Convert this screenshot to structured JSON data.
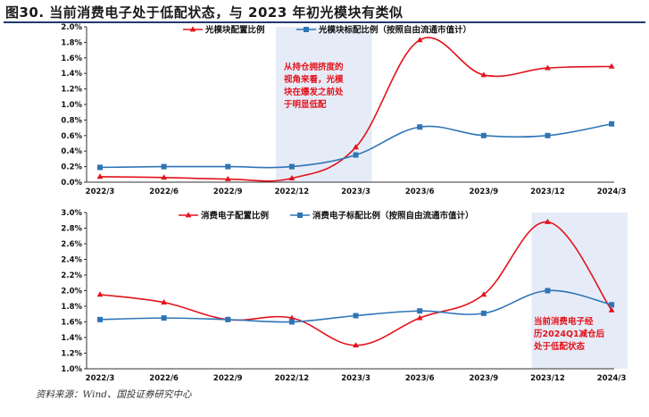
{
  "figure": {
    "title": "图30. 当前消费电子处于低配状态，与 2023 年初光模块有类似",
    "source": "资料来源：Wind、国投证券研究中心"
  },
  "chart_data": [
    {
      "type": "line",
      "categories": [
        "2022/3",
        "2022/6",
        "2022/9",
        "2022/12",
        "2023/3",
        "2023/6",
        "2023/9",
        "2023/12",
        "2024/3"
      ],
      "series": [
        {
          "name": "光模块配置比例",
          "color": "#e3121b",
          "marker": "triangle",
          "values": [
            0.07,
            0.06,
            0.04,
            0.05,
            0.45,
            1.83,
            1.38,
            1.47,
            1.49
          ]
        },
        {
          "name": "光模块标配比例（按照自由流通市值计）",
          "color": "#2e75b6",
          "marker": "square",
          "values": [
            0.19,
            0.2,
            0.2,
            0.2,
            0.35,
            0.71,
            0.6,
            0.6,
            0.75
          ]
        }
      ],
      "ylim": [
        0.0,
        2.0
      ],
      "ytick_step": 0.2,
      "ytick_labels": [
        "0.0%",
        "0.2%",
        "0.4%",
        "0.6%",
        "0.8%",
        "1.0%",
        "1.2%",
        "1.4%",
        "1.6%",
        "1.8%",
        "2.0%"
      ],
      "highlight": {
        "from": "2022/12",
        "to": "2023/3",
        "color": "#e6ecf7"
      },
      "annotation": [
        "从持仓拥挤度的",
        "视角来看，光模",
        "块在爆发之前处",
        "于明显低配"
      ],
      "legend_position": "top-center",
      "grid": false
    },
    {
      "type": "line",
      "categories": [
        "2022/3",
        "2022/6",
        "2022/9",
        "2022/12",
        "2023/3",
        "2023/6",
        "2023/9",
        "2023/12",
        "2024/3"
      ],
      "series": [
        {
          "name": "消费电子配置比例",
          "color": "#e3121b",
          "marker": "triangle",
          "values": [
            1.95,
            1.85,
            1.63,
            1.65,
            1.3,
            1.65,
            1.95,
            2.88,
            1.75
          ]
        },
        {
          "name": "消费电子标配比例（按照自由流通市值计）",
          "color": "#2e75b6",
          "marker": "square",
          "values": [
            1.63,
            1.65,
            1.63,
            1.6,
            1.68,
            1.74,
            1.71,
            2.0,
            1.82
          ]
        }
      ],
      "ylim": [
        1.0,
        3.0
      ],
      "ytick_step": 0.2,
      "ytick_labels": [
        "1.0%",
        "1.2%",
        "1.4%",
        "1.6%",
        "1.8%",
        "2.0%",
        "2.2%",
        "2.4%",
        "2.6%",
        "2.8%",
        "3.0%"
      ],
      "highlight": {
        "from": "2023/12",
        "to": "2024/3",
        "color": "#e6ecf7"
      },
      "annotation": [
        "当前消费电子经",
        "历2024Q1减仓后",
        "处于低配状态"
      ],
      "legend_position": "top-center",
      "grid": false
    }
  ]
}
